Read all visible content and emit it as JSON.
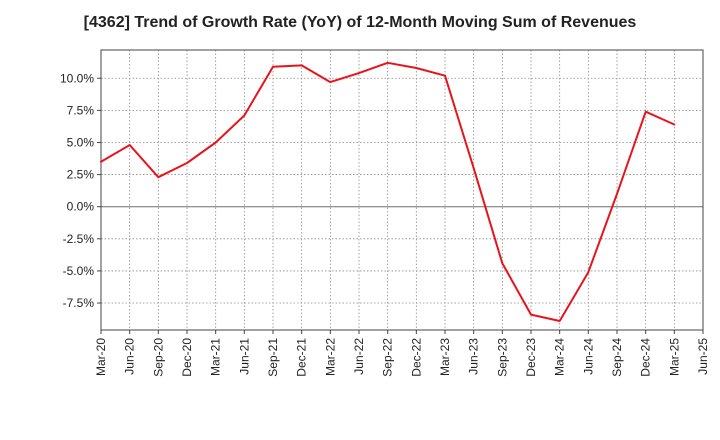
{
  "chart_data": {
    "type": "line",
    "title": "[4362]  Trend of Growth Rate (YoY) of 12-Month Moving Sum of Revenues",
    "xlabel": "",
    "ylabel": "",
    "x_tick_labels": [
      "Mar-20",
      "Jun-20",
      "Sep-20",
      "Dec-20",
      "Mar-21",
      "Jun-21",
      "Sep-21",
      "Dec-21",
      "Mar-22",
      "Jun-22",
      "Sep-22",
      "Dec-22",
      "Mar-23",
      "Jun-23",
      "Sep-23",
      "Dec-23",
      "Mar-24",
      "Jun-24",
      "Sep-24",
      "Dec-24",
      "Mar-25",
      "Jun-25"
    ],
    "y_ticks": [
      10.0,
      7.5,
      5.0,
      2.5,
      0.0,
      -2.5,
      -5.0,
      -7.5
    ],
    "y_tick_labels": [
      "10.0%",
      "7.5%",
      "5.0%",
      "2.5%",
      "0.0%",
      "-2.5%",
      "-5.0%",
      "-7.5%"
    ],
    "ylim": [
      -9.6,
      12.2
    ],
    "grid": true,
    "series": [
      {
        "color": "#e8141b",
        "x": [
          "Mar-20",
          "Jun-20",
          "Sep-20",
          "Dec-20",
          "Mar-21",
          "Jun-21",
          "Sep-21",
          "Dec-21",
          "Mar-22",
          "Jun-22",
          "Sep-22",
          "Dec-22",
          "Mar-23",
          "Jun-23",
          "Sep-23",
          "Dec-23",
          "Mar-24",
          "Jun-24",
          "Sep-24",
          "Dec-24",
          "Mar-25"
        ],
        "values": [
          3.5,
          4.8,
          2.3,
          3.4,
          5.0,
          7.1,
          10.9,
          11.0,
          9.7,
          10.4,
          11.2,
          10.8,
          10.2,
          3.0,
          -4.4,
          -8.4,
          -8.9,
          -5.1,
          1.0,
          7.4,
          6.4
        ]
      }
    ]
  }
}
